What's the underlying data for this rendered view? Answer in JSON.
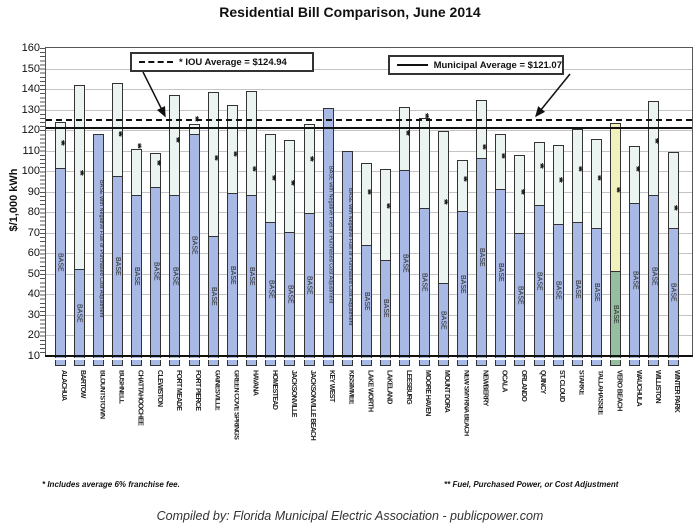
{
  "title": "Residential Bill Comparison, June 2014",
  "y_axis": {
    "title": "$/1,000 kWh",
    "ticks": [
      160,
      150,
      140,
      130,
      120,
      110,
      100,
      90,
      80,
      70,
      60,
      50,
      40,
      30,
      20,
      10
    ],
    "minor_tick_step": 2
  },
  "legend": {
    "iou_label": "* IOU Average = $124.94",
    "municipal_label": "Municipal Average = $121.07"
  },
  "footnotes": {
    "left": "* Includes average 6% franchise fee.",
    "right": "** Fuel, Purchased Power, or Cost Adjustment"
  },
  "caption": "Compiled by: Florida Municipal Electric Association - publicpower.com",
  "labels": {
    "base": "BASE",
    "negative_base": "BASE with Negative Fuel or Purchased Cost Adjustment",
    "fuel_adjustment_mark": "**"
  },
  "colors": {
    "base_fill": "#a9b9e6",
    "upper_fill": "#ebf4f1",
    "highlight_upper_fill": "#f1f1be",
    "highlight_base_fill": "#96bfa2",
    "grid": "#c4c4c4",
    "line": "#111111"
  },
  "chart_data": {
    "type": "bar",
    "subtype": "stacked",
    "ylabel": "$/1,000 kWh",
    "ylim": [
      10,
      160
    ],
    "grid": true,
    "iou_average": 124.94,
    "municipal_average": 121.07,
    "series_names": [
      "Base",
      "Fuel / Purchased Power / Cost Adjustment"
    ],
    "bars": [
      {
        "city": "ALACHUA",
        "base": 101,
        "total": 124,
        "ann": "**",
        "ann_v": 111,
        "style": "normal"
      },
      {
        "city": "BARTOW",
        "base": 52,
        "total": 142,
        "ann": "**",
        "ann_v": 96,
        "style": "normal"
      },
      {
        "city": "BLOUNTSTOWN",
        "base": 118,
        "total": 118,
        "ann": null,
        "ann_v": null,
        "style": "all-base"
      },
      {
        "city": "BUSHNELL",
        "base": 97,
        "total": 143,
        "ann": "**",
        "ann_v": 115,
        "style": "normal"
      },
      {
        "city": "CHATTAHOOCHEE",
        "base": 88,
        "total": 111,
        "ann": "**",
        "ann_v": 109.5,
        "style": "normal"
      },
      {
        "city": "CLEWISTON",
        "base": 92,
        "total": 109,
        "ann": "**",
        "ann_v": 101,
        "style": "normal"
      },
      {
        "city": "FORT MEADE",
        "base": 88,
        "total": 137,
        "ann": "**",
        "ann_v": 112.5,
        "style": "normal"
      },
      {
        "city": "FORT PIERCE",
        "base": 117.5,
        "total": 123,
        "ann": "**",
        "ann_v": 122.5,
        "style": "normal"
      },
      {
        "city": "GAINESVILLE",
        "base": 68,
        "total": 138.5,
        "ann": "**",
        "ann_v": 103.5,
        "style": "normal"
      },
      {
        "city": "GREEN COVE SPRINGS",
        "base": 89,
        "total": 132,
        "ann": "**",
        "ann_v": 105.5,
        "style": "normal"
      },
      {
        "city": "HAVANA",
        "base": 88,
        "total": 139,
        "ann": "**",
        "ann_v": 98,
        "style": "normal"
      },
      {
        "city": "HOMESTEAD",
        "base": 75,
        "total": 118,
        "ann": "**",
        "ann_v": 94,
        "style": "normal"
      },
      {
        "city": "JACKSONVILLE",
        "base": 70,
        "total": 115,
        "ann": "**",
        "ann_v": 91.5,
        "style": "normal"
      },
      {
        "city": "JACKSONVILLE BEACH",
        "base": 79,
        "total": 123,
        "ann": "**",
        "ann_v": 103,
        "style": "normal"
      },
      {
        "city": "KEY WEST",
        "base": 131,
        "total": 131,
        "ann": null,
        "ann_v": null,
        "style": "all-base"
      },
      {
        "city": "KISSIMMEE",
        "base": 110,
        "total": 110,
        "ann": null,
        "ann_v": null,
        "style": "all-base"
      },
      {
        "city": "LAKE WORTH",
        "base": 63.5,
        "total": 104,
        "ann": "**",
        "ann_v": 87,
        "style": "normal"
      },
      {
        "city": "LAKELAND",
        "base": 56.5,
        "total": 101,
        "ann": "**",
        "ann_v": 80,
        "style": "normal"
      },
      {
        "city": "LEESBURG",
        "base": 100,
        "total": 131.5,
        "ann": "**",
        "ann_v": 115.5,
        "style": "normal"
      },
      {
        "city": "MOORE HAVEN",
        "base": 81.5,
        "total": 126,
        "ann": "**",
        "ann_v": 124,
        "style": "normal"
      },
      {
        "city": "MOUNT DORA",
        "base": 45,
        "total": 119.5,
        "ann": "**",
        "ann_v": 82,
        "style": "normal"
      },
      {
        "city": "NEW SMYRNA BEACH",
        "base": 80,
        "total": 105.5,
        "ann": "**",
        "ann_v": 93.5,
        "style": "normal"
      },
      {
        "city": "NEWBERRY",
        "base": 106,
        "total": 134.5,
        "ann": "**",
        "ann_v": 109,
        "style": "normal"
      },
      {
        "city": "OCALA",
        "base": 91,
        "total": 118,
        "ann": "**",
        "ann_v": 104.5,
        "style": "normal"
      },
      {
        "city": "ORLANDO",
        "base": 69.5,
        "total": 108,
        "ann": "**",
        "ann_v": 87,
        "style": "normal"
      },
      {
        "city": "QUINCY",
        "base": 83,
        "total": 114,
        "ann": "**",
        "ann_v": 99.5,
        "style": "normal"
      },
      {
        "city": "ST. CLOUD",
        "base": 74,
        "total": 113,
        "ann": "**",
        "ann_v": 93,
        "style": "normal"
      },
      {
        "city": "STARKE",
        "base": 75,
        "total": 120.5,
        "ann": "**",
        "ann_v": 98,
        "style": "normal"
      },
      {
        "city": "TALLAHASSEE",
        "base": 72,
        "total": 115.5,
        "ann": "**",
        "ann_v": 94,
        "style": "normal"
      },
      {
        "city": "VERO BEACH",
        "base": 51,
        "total": 123.5,
        "ann": "**",
        "ann_v": 88,
        "style": "highlight"
      },
      {
        "city": "WAUCHULA",
        "base": 84,
        "total": 112.5,
        "ann": "**",
        "ann_v": 98,
        "style": "normal"
      },
      {
        "city": "WILLISTON",
        "base": 88,
        "total": 134,
        "ann": "**",
        "ann_v": 112,
        "style": "normal"
      },
      {
        "city": "WINTER PARK",
        "base": 72,
        "total": 109.5,
        "ann": "**",
        "ann_v": 79,
        "style": "normal"
      }
    ]
  }
}
